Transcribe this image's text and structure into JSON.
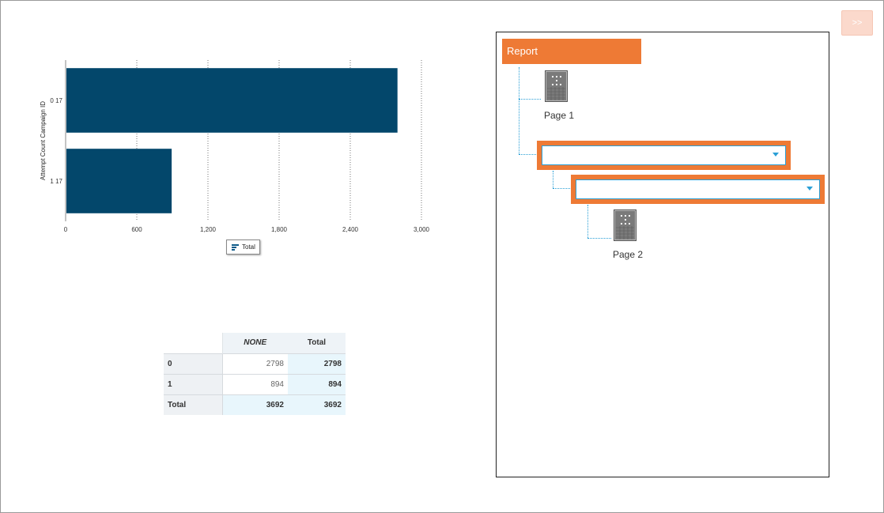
{
  "chart_data": {
    "type": "bar",
    "orientation": "horizontal",
    "ylabel": "Attempt Count Campaign ID",
    "categories": [
      "0 17",
      "1 17"
    ],
    "series": [
      {
        "name": "Total",
        "values": [
          2798,
          894
        ]
      }
    ],
    "xlim": [
      0,
      3000
    ],
    "xticks": [
      "0",
      "600",
      "1,200",
      "1,800",
      "2,400",
      "3,000"
    ],
    "xtick_values": [
      0,
      600,
      1200,
      1800,
      2400,
      3000
    ],
    "grid": true,
    "legend_placement": "bottom-center",
    "bar_color": "#03476b"
  },
  "legend": {
    "label": "Total"
  },
  "table": {
    "corner": "",
    "headers": [
      "NONE",
      "Total"
    ],
    "rows": [
      {
        "label": "0",
        "none": "2798",
        "total": "2798"
      },
      {
        "label": "1",
        "none": "894",
        "total": "894"
      },
      {
        "label": "Total",
        "none": "3692",
        "total": "3692"
      }
    ]
  },
  "toolbar": {
    "expand_label": ">>"
  },
  "outline": {
    "root_label": "Report",
    "page1_label": "Page 1",
    "page2_label": "Page 2",
    "select1_value": "",
    "select2_value": ""
  },
  "colors": {
    "accent": "#ee7a35",
    "link": "#2a9fd6",
    "bar": "#03476b"
  }
}
